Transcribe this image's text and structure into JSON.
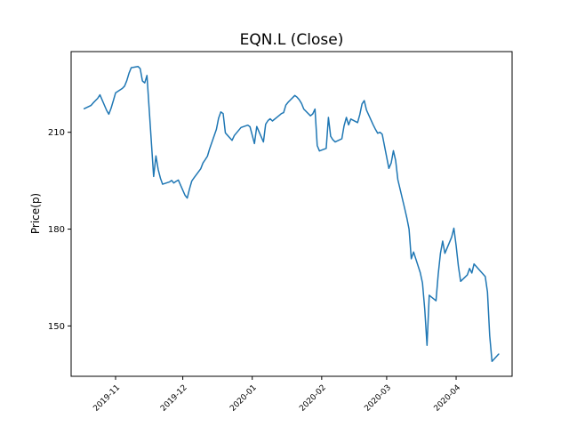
{
  "figure": {
    "title": "EQN.L (Close)",
    "ylabel": "Price(p)"
  },
  "chart_data": {
    "type": "line",
    "title": "EQN.L (Close)",
    "xlabel": "",
    "ylabel": "Price(p)",
    "legend": "none",
    "grid": false,
    "line_color": "#1f77b4",
    "line_width": 1.5,
    "background_color": "#ffffff",
    "ylim": [
      134.4,
      235.0
    ],
    "yticks": [
      150,
      180,
      210
    ],
    "xticks": [
      "2019-11",
      "2019-12",
      "2020-01",
      "2020-02",
      "2020-03",
      "2020-04"
    ],
    "x": [
      "2019-10-18",
      "2019-10-21",
      "2019-10-22",
      "2019-10-23",
      "2019-10-24",
      "2019-10-25",
      "2019-10-28",
      "2019-10-29",
      "2019-10-30",
      "2019-10-31",
      "2019-11-01",
      "2019-11-04",
      "2019-11-05",
      "2019-11-06",
      "2019-11-07",
      "2019-11-08",
      "2019-11-11",
      "2019-11-12",
      "2019-11-13",
      "2019-11-14",
      "2019-11-15",
      "2019-11-18",
      "2019-11-19",
      "2019-11-20",
      "2019-11-21",
      "2019-11-22",
      "2019-11-25",
      "2019-11-26",
      "2019-11-27",
      "2019-11-28",
      "2019-11-29",
      "2019-12-02",
      "2019-12-03",
      "2019-12-04",
      "2019-12-05",
      "2019-12-06",
      "2019-12-09",
      "2019-12-10",
      "2019-12-11",
      "2019-12-12",
      "2019-12-13",
      "2019-12-16",
      "2019-12-17",
      "2019-12-18",
      "2019-12-19",
      "2019-12-20",
      "2019-12-23",
      "2019-12-24",
      "2019-12-27",
      "2019-12-30",
      "2019-12-31",
      "2020-01-02",
      "2020-01-03",
      "2020-01-06",
      "2020-01-07",
      "2020-01-08",
      "2020-01-09",
      "2020-01-10",
      "2020-01-13",
      "2020-01-14",
      "2020-01-15",
      "2020-01-16",
      "2020-01-17",
      "2020-01-20",
      "2020-01-21",
      "2020-01-22",
      "2020-01-23",
      "2020-01-24",
      "2020-01-27",
      "2020-01-28",
      "2020-01-29",
      "2020-01-30",
      "2020-01-31",
      "2020-02-03",
      "2020-02-04",
      "2020-02-05",
      "2020-02-06",
      "2020-02-07",
      "2020-02-10",
      "2020-02-11",
      "2020-02-12",
      "2020-02-13",
      "2020-02-14",
      "2020-02-17",
      "2020-02-18",
      "2020-02-19",
      "2020-02-20",
      "2020-02-21",
      "2020-02-24",
      "2020-02-25",
      "2020-02-26",
      "2020-02-27",
      "2020-02-28",
      "2020-03-02",
      "2020-03-03",
      "2020-03-04",
      "2020-03-05",
      "2020-03-06",
      "2020-03-09",
      "2020-03-10",
      "2020-03-11",
      "2020-03-12",
      "2020-03-13",
      "2020-03-16",
      "2020-03-17",
      "2020-03-18",
      "2020-03-19",
      "2020-03-20",
      "2020-03-23",
      "2020-03-24",
      "2020-03-25",
      "2020-03-26",
      "2020-03-27",
      "2020-03-30",
      "2020-03-31",
      "2020-04-01",
      "2020-04-02",
      "2020-04-03",
      "2020-04-06",
      "2020-04-07",
      "2020-04-08",
      "2020-04-09",
      "2020-04-14",
      "2020-04-15",
      "2020-04-16",
      "2020-04-17",
      "2020-04-20"
    ],
    "y": [
      217.3,
      218.3,
      219.1,
      219.8,
      220.5,
      221.6,
      216.8,
      215.6,
      217.5,
      219.8,
      222.2,
      223.6,
      224.3,
      226.0,
      228.3,
      230.0,
      230.4,
      229.7,
      225.9,
      225.3,
      227.6,
      196.3,
      202.7,
      198.5,
      195.8,
      193.9,
      194.6,
      195.1,
      194.3,
      194.8,
      195.2,
      190.5,
      189.6,
      192.5,
      194.9,
      195.9,
      198.7,
      200.5,
      201.5,
      202.6,
      204.9,
      210.9,
      214.4,
      216.3,
      215.8,
      209.8,
      207.5,
      209.0,
      211.5,
      212.2,
      211.7,
      206.5,
      211.8,
      207.0,
      212.5,
      213.6,
      214.2,
      213.5,
      215.2,
      215.8,
      216.1,
      218.4,
      219.3,
      221.4,
      220.9,
      220.1,
      218.9,
      217.2,
      215.1,
      215.7,
      217.2,
      205.9,
      204.2,
      205.0,
      214.6,
      208.8,
      207.7,
      207.0,
      208.0,
      212.0,
      214.6,
      212.3,
      214.1,
      213.0,
      215.5,
      218.8,
      219.8,
      216.9,
      212.3,
      210.9,
      209.7,
      210.0,
      209.4,
      198.8,
      200.5,
      204.3,
      201.3,
      195.3,
      186.5,
      183.5,
      180.0,
      170.8,
      172.9,
      166.5,
      163.3,
      155.0,
      144.0,
      159.5,
      157.8,
      166.0,
      172.5,
      176.3,
      172.5,
      177.5,
      180.3,
      175.0,
      168.5,
      163.8,
      165.8,
      167.8,
      166.4,
      169.2,
      165.3,
      160.5,
      147.0,
      139.0,
      141.3
    ]
  }
}
